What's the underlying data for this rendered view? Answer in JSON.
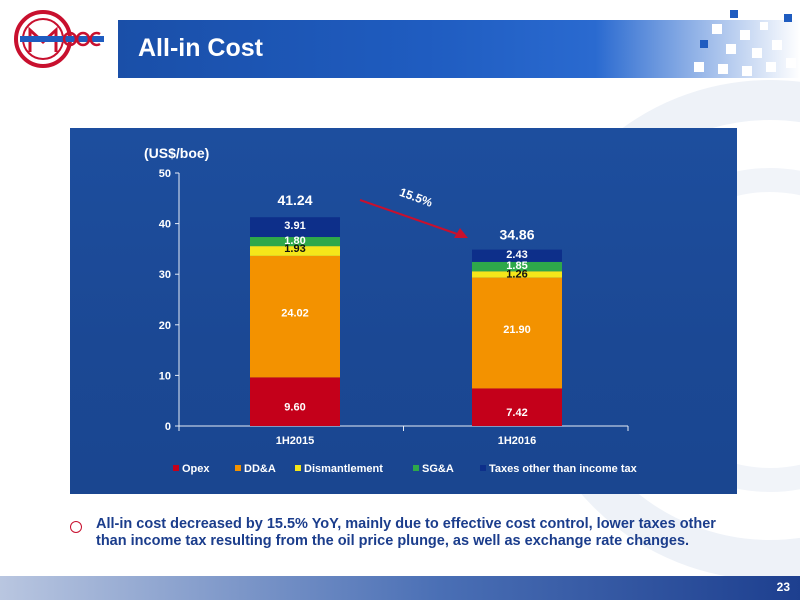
{
  "slide": {
    "title": "All-in Cost",
    "page_number": "23",
    "bullet": "All-in cost decreased by 15.5% YoY, mainly due to effective cost control, lower taxes other than income tax resulting from the oil price plunge, as well as exchange rate changes."
  },
  "colors": {
    "header_blue": "#1f5cc0",
    "panel_blue": "#1b4894",
    "bullet_text": "#1b3d8c",
    "logo_red": "#c8102e"
  },
  "chart_data": {
    "type": "bar",
    "stacked": true,
    "unit_label": "(US$/boe)",
    "categories": [
      "1H2015",
      "1H2016"
    ],
    "ylim": [
      0,
      50
    ],
    "yticks": [
      0,
      10,
      20,
      30,
      40,
      50
    ],
    "totals": [
      "41.24",
      "34.86"
    ],
    "change_annotation": "15.5%",
    "series": [
      {
        "name": "Opex",
        "values": [
          9.6,
          7.42
        ],
        "labels": [
          "9.60",
          "7.42"
        ],
        "color": "#c4001a",
        "label_color": "#ffffff"
      },
      {
        "name": "DD&A",
        "values": [
          24.02,
          21.9
        ],
        "labels": [
          "24.02",
          "21.90"
        ],
        "color": "#f39200",
        "label_color": "#ffffff"
      },
      {
        "name": "Dismantlement",
        "values": [
          1.93,
          1.26
        ],
        "labels": [
          "1.93",
          "1.26"
        ],
        "color": "#f5e61a",
        "label_color": "#111111"
      },
      {
        "name": "SG&A",
        "values": [
          1.8,
          1.85
        ],
        "labels": [
          "1.80",
          "1.85"
        ],
        "color": "#2ea84a",
        "label_color": "#ffffff"
      },
      {
        "name": "Taxes other than income tax",
        "values": [
          3.91,
          2.43
        ],
        "labels": [
          "3.91",
          "2.43"
        ],
        "color": "#0d2f8a",
        "label_color": "#ffffff"
      }
    ],
    "grid": false,
    "legend": "bottom"
  }
}
